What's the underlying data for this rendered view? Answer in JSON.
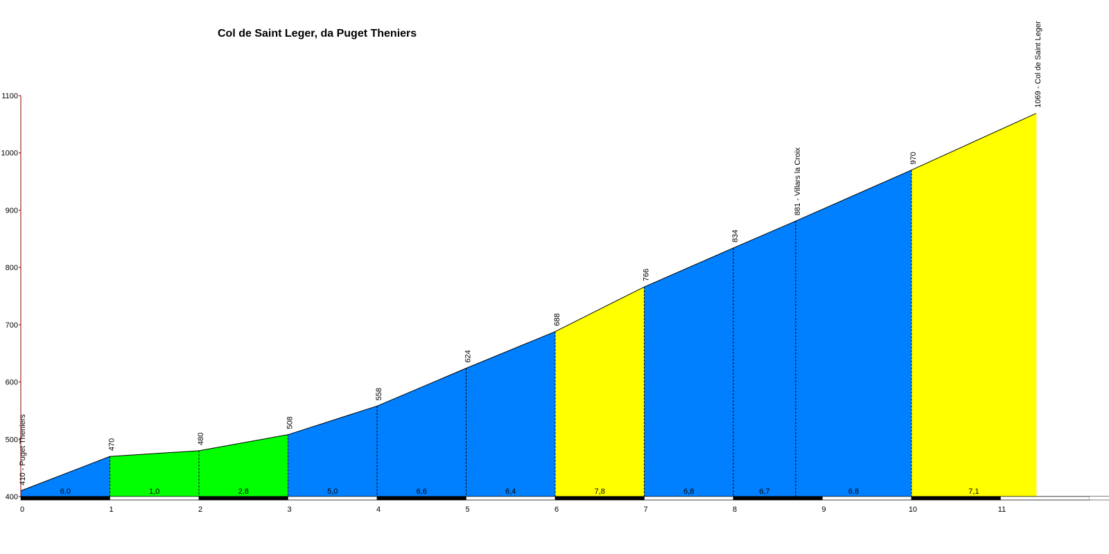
{
  "chart_data": {
    "type": "area",
    "title": "Col de Saint Leger, da Puget Theniers",
    "xlabel": "",
    "ylabel": "",
    "xlim": [
      0,
      12
    ],
    "ylim": [
      400,
      1100
    ],
    "x_ticks": [
      0,
      1,
      2,
      3,
      4,
      5,
      6,
      7,
      8,
      9,
      10,
      11
    ],
    "y_ticks": [
      400,
      500,
      600,
      700,
      800,
      900,
      1000,
      1100
    ],
    "points": [
      {
        "x": 0,
        "y": 410,
        "label": "410 - Puget Theniers"
      },
      {
        "x": 1,
        "y": 470,
        "label": "470"
      },
      {
        "x": 2,
        "y": 480,
        "label": "480"
      },
      {
        "x": 3,
        "y": 508,
        "label": "508"
      },
      {
        "x": 4,
        "y": 558,
        "label": "558"
      },
      {
        "x": 5,
        "y": 624,
        "label": "624"
      },
      {
        "x": 6,
        "y": 688,
        "label": "688"
      },
      {
        "x": 7,
        "y": 766,
        "label": "766"
      },
      {
        "x": 8,
        "y": 834,
        "label": "834"
      },
      {
        "x": 8.7,
        "y": 881,
        "label": "881 - Villars la Croix"
      },
      {
        "x": 10,
        "y": 970,
        "label": "970"
      },
      {
        "x": 11.4,
        "y": 1069,
        "label": "1069 - Col de Saint Leger"
      }
    ],
    "segments": [
      {
        "x0": 0,
        "x1": 1,
        "gradient": "6,0",
        "color": "#0080ff"
      },
      {
        "x0": 1,
        "x1": 2,
        "gradient": "1,0",
        "color": "#00ff00"
      },
      {
        "x0": 2,
        "x1": 3,
        "gradient": "2,8",
        "color": "#00ff00"
      },
      {
        "x0": 3,
        "x1": 4,
        "gradient": "5,0",
        "color": "#0080ff"
      },
      {
        "x0": 4,
        "x1": 5,
        "gradient": "6,6",
        "color": "#0080ff"
      },
      {
        "x0": 5,
        "x1": 6,
        "gradient": "6,4",
        "color": "#0080ff"
      },
      {
        "x0": 6,
        "x1": 7,
        "gradient": "7,8",
        "color": "#ffff00"
      },
      {
        "x0": 7,
        "x1": 8,
        "gradient": "6,8",
        "color": "#0080ff"
      },
      {
        "x0": 8,
        "x1": 8.7,
        "gradient": "6,7",
        "color": "#0080ff"
      },
      {
        "x0": 8.7,
        "x1": 10,
        "gradient": "6,8",
        "color": "#0080ff"
      },
      {
        "x0": 10,
        "x1": 11.4,
        "gradient": "7,1",
        "color": "#ffff00"
      }
    ],
    "grid": false,
    "legend": "none"
  }
}
